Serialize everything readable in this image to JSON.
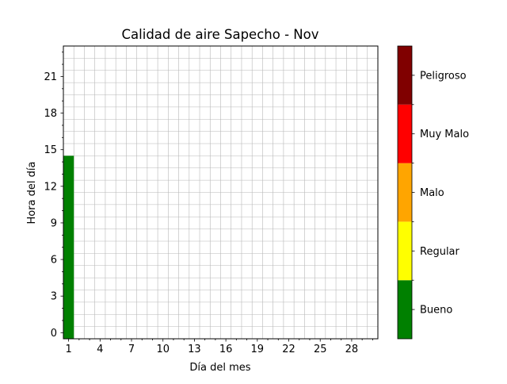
{
  "chart_data": {
    "type": "heatmap",
    "title": "Calidad de aire Sapecho - Nov",
    "xlabel": "Día del mes",
    "ylabel": "Hora del día",
    "x_ticks": [
      1,
      4,
      7,
      10,
      13,
      16,
      19,
      22,
      25,
      28
    ],
    "y_ticks": [
      0,
      3,
      6,
      9,
      12,
      15,
      18,
      21
    ],
    "xlim": [
      0.5,
      30.5
    ],
    "ylim": [
      -0.5,
      23.5
    ],
    "grid": true,
    "cells": [
      {
        "day": 1,
        "hour_start": 0,
        "hour_end": 14,
        "category": "Bueno"
      }
    ],
    "colorbar": {
      "categories": [
        {
          "label": "Bueno",
          "color": "#008000"
        },
        {
          "label": "Regular",
          "color": "#ffff00"
        },
        {
          "label": "Malo",
          "color": "#ffa500"
        },
        {
          "label": "Muy Malo",
          "color": "#ff0000"
        },
        {
          "label": "Peligroso",
          "color": "#800000"
        }
      ]
    }
  }
}
